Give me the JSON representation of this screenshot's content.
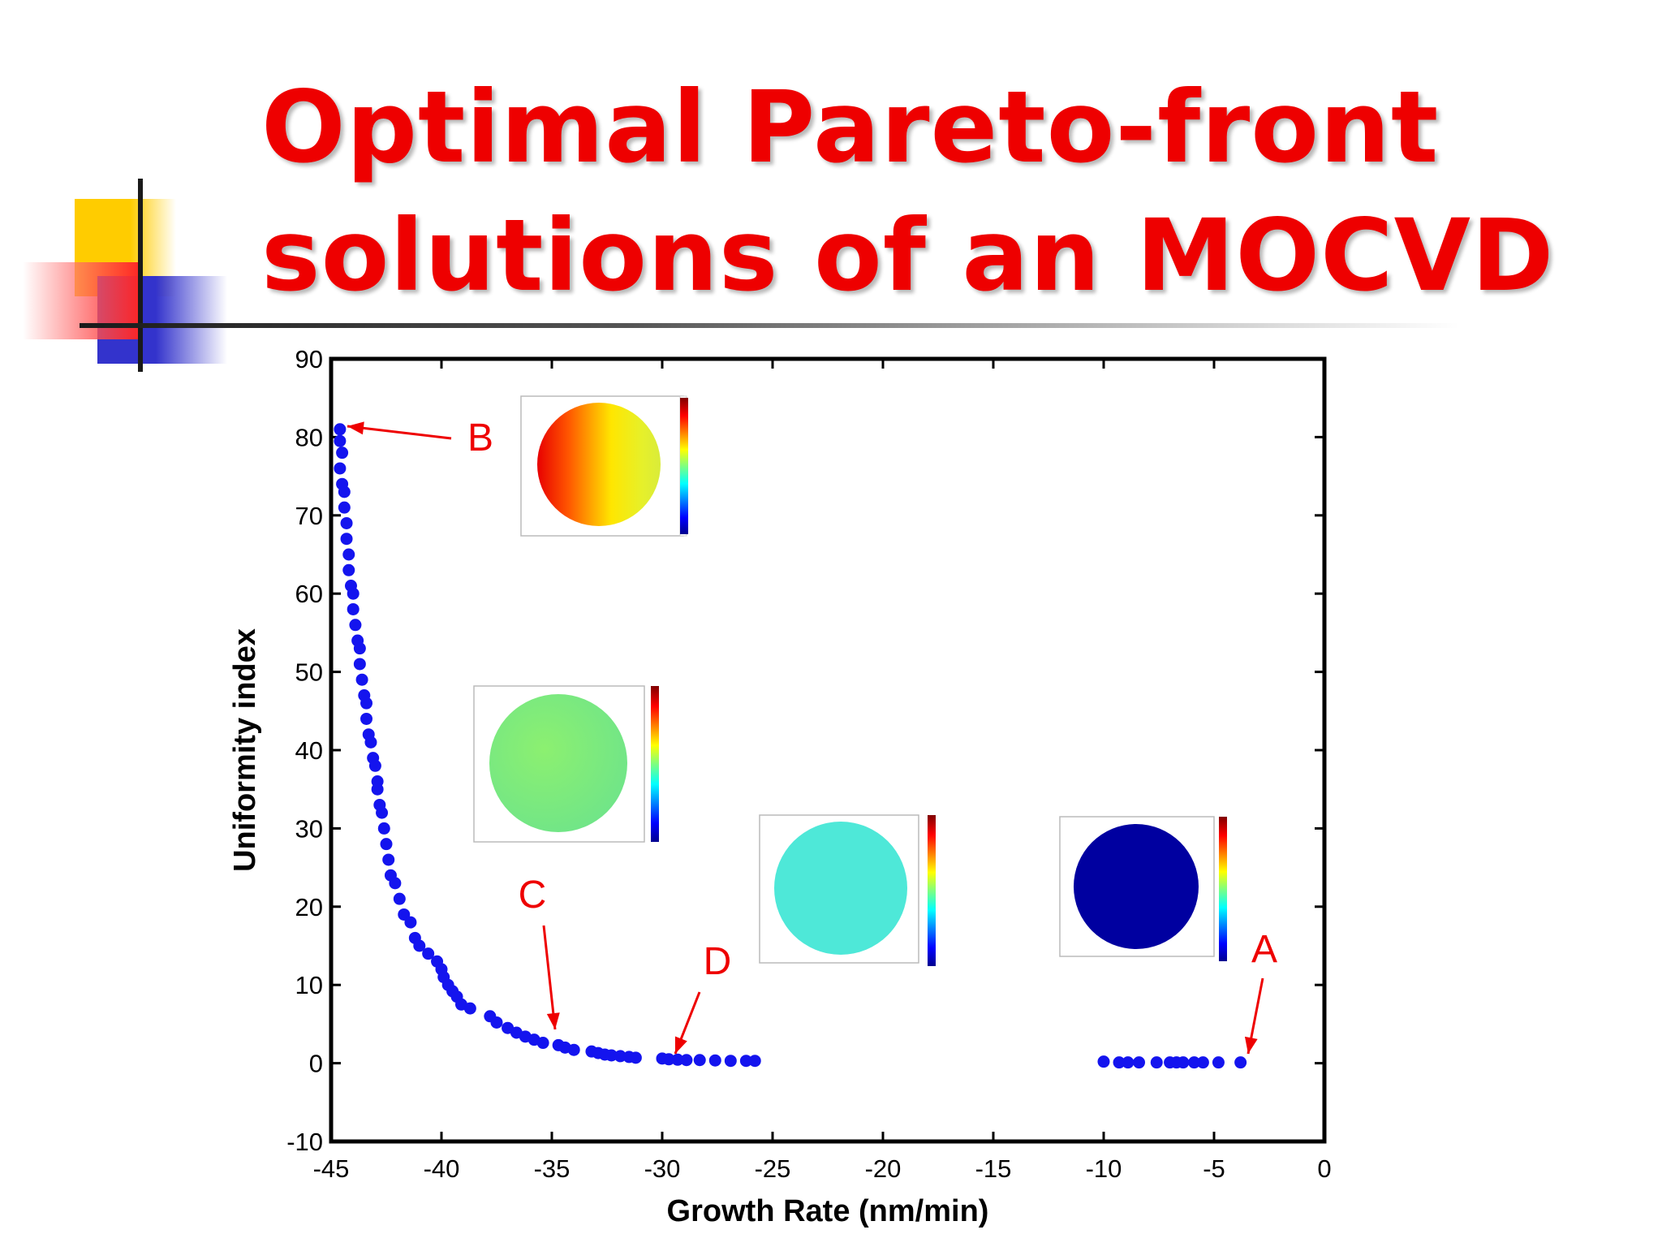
{
  "slide": {
    "title_line1": "Optimal Pareto-front",
    "title_line2": "solutions of an MOCVD"
  },
  "colors": {
    "title": "#ee0000",
    "points": "#1414ee",
    "annotation": "#ee0000",
    "deco_yellow": "#ffcc00",
    "deco_blue": "#3333cc",
    "deco_red": "#ff2222"
  },
  "chart_data": {
    "type": "scatter",
    "title": "",
    "xlabel": "Growth Rate (nm/min)",
    "ylabel": "Uniformity index",
    "xlim": [
      -45,
      0
    ],
    "ylim": [
      -10,
      90
    ],
    "xticks": [
      -45,
      -40,
      -35,
      -30,
      -25,
      -20,
      -15,
      -10,
      -5,
      0
    ],
    "yticks": [
      -10,
      0,
      10,
      20,
      30,
      40,
      50,
      60,
      70,
      80,
      90
    ],
    "grid": false,
    "series": [
      {
        "color": "#1414ee",
        "x": [
          -44.6,
          -44.6,
          -44.5,
          -44.6,
          -44.5,
          -44.4,
          -44.4,
          -44.3,
          -44.3,
          -44.2,
          -44.2,
          -44.1,
          -44.0,
          -44.0,
          -43.9,
          -43.8,
          -43.7,
          -43.7,
          -43.6,
          -43.5,
          -43.4,
          -43.4,
          -43.3,
          -43.2,
          -43.1,
          -43.0,
          -42.9,
          -42.9,
          -42.8,
          -42.7,
          -42.6,
          -42.5,
          -42.4,
          -42.3,
          -42.1,
          -41.9,
          -41.7,
          -41.4,
          -41.2,
          -41.0,
          -40.6,
          -40.2,
          -40.0,
          -39.9,
          -39.7,
          -39.5,
          -39.3,
          -39.1,
          -38.7,
          -37.8,
          -37.5,
          -37.0,
          -36.6,
          -36.2,
          -35.8,
          -35.4,
          -34.7,
          -34.4,
          -34.0,
          -33.2,
          -32.9,
          -32.6,
          -32.3,
          -31.9,
          -31.5,
          -31.2,
          -30.0,
          -29.7,
          -29.3,
          -28.9,
          -28.3,
          -27.6,
          -26.9,
          -26.2,
          -25.8,
          -10.0,
          -9.3,
          -8.9,
          -8.4,
          -7.6,
          -7.0,
          -6.7,
          -6.4,
          -5.9,
          -5.5,
          -4.8,
          -3.8
        ],
        "y": [
          81,
          79.5,
          78,
          76,
          74,
          73,
          71,
          69,
          67,
          65,
          63,
          61,
          60,
          58,
          56,
          54,
          53,
          51,
          49,
          47,
          46,
          44,
          42,
          41,
          39,
          38,
          36,
          35,
          33,
          32,
          30,
          28,
          26,
          24,
          23,
          21,
          19,
          18,
          16,
          15,
          14,
          13,
          12,
          11,
          10,
          9.2,
          8.5,
          7.5,
          7,
          6,
          5.2,
          4.5,
          3.9,
          3.4,
          3,
          2.6,
          2.3,
          2,
          1.7,
          1.5,
          1.3,
          1.1,
          1,
          0.9,
          0.8,
          0.7,
          0.6,
          0.5,
          0.45,
          0.4,
          0.4,
          0.35,
          0.3,
          0.3,
          0.3,
          0.2,
          0.1,
          0.1,
          0.1,
          0.1,
          0.1,
          0.1,
          0.1,
          0.1,
          0.1,
          0.1,
          0.1
        ]
      }
    ],
    "annotations": [
      {
        "label": "A",
        "x": -3.5,
        "y": 0.1
      },
      {
        "label": "B",
        "x": -44.4,
        "y": 80.5
      },
      {
        "label": "C",
        "x": -34.8,
        "y": 3.5
      },
      {
        "label": "D",
        "x": -29.5,
        "y": 0.5
      }
    ],
    "insets": [
      {
        "point": "B",
        "map": "red-yellow gradient"
      },
      {
        "point": "C",
        "map": "uniform green"
      },
      {
        "point": "D",
        "map": "uniform cyan"
      },
      {
        "point": "A",
        "map": "uniform dark blue"
      }
    ]
  }
}
